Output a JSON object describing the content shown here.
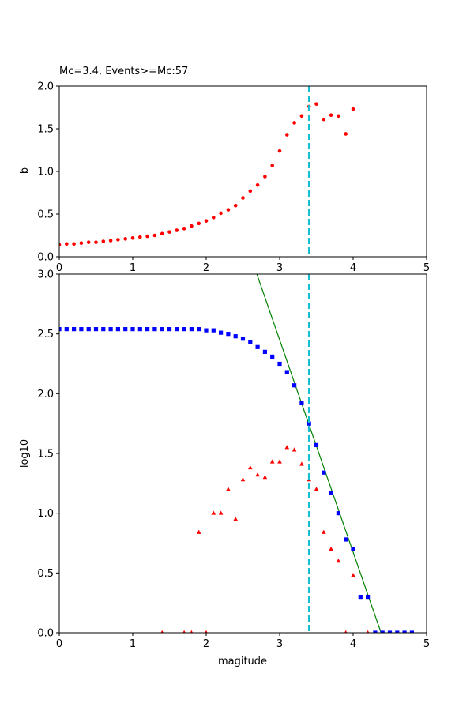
{
  "chart_data": [
    {
      "type": "scatter",
      "title": "Mc=3.4, Events>=Mc:57",
      "xlabel": "",
      "ylabel": "b",
      "xlim": [
        0,
        5
      ],
      "ylim": [
        0,
        2.0
      ],
      "xticks": [
        "0",
        "1",
        "2",
        "3",
        "4",
        "5"
      ],
      "xtick_values": [
        0,
        1,
        2,
        3,
        4,
        5
      ],
      "yticks": [
        "0.0",
        "0.5",
        "1.0",
        "1.5",
        "2.0"
      ],
      "ytick_values": [
        0,
        0.5,
        1.0,
        1.5,
        2.0
      ],
      "grid": false,
      "mc_line": {
        "x": 3.4,
        "color": "#17becf"
      },
      "series": [
        {
          "marker": "circle",
          "color": "#ff0000",
          "x": [
            0,
            0.1,
            0.2,
            0.3,
            0.4,
            0.5,
            0.6,
            0.7,
            0.8,
            0.9,
            1.0,
            1.1,
            1.2,
            1.3,
            1.4,
            1.5,
            1.6,
            1.7,
            1.8,
            1.9,
            2.0,
            2.1,
            2.2,
            2.3,
            2.4,
            2.5,
            2.6,
            2.7,
            2.8,
            2.9,
            3.0,
            3.1,
            3.2,
            3.3,
            3.4,
            3.5,
            3.6,
            3.7,
            3.8,
            3.9,
            4.0
          ],
          "y": [
            0.14,
            0.15,
            0.15,
            0.16,
            0.17,
            0.17,
            0.18,
            0.19,
            0.2,
            0.21,
            0.22,
            0.23,
            0.24,
            0.25,
            0.27,
            0.29,
            0.31,
            0.33,
            0.36,
            0.39,
            0.42,
            0.46,
            0.51,
            0.55,
            0.6,
            0.69,
            0.77,
            0.84,
            0.94,
            1.07,
            1.24,
            1.43,
            1.57,
            1.65,
            1.76,
            1.79,
            1.61,
            1.66,
            1.65,
            1.44,
            1.73
          ]
        }
      ]
    },
    {
      "type": "scatter",
      "title": "",
      "xlabel": "magitude",
      "ylabel": "log10",
      "xlim": [
        0,
        5
      ],
      "ylim": [
        0,
        3.0
      ],
      "xticks": [
        "0",
        "1",
        "2",
        "3",
        "4",
        "5"
      ],
      "xtick_values": [
        0,
        1,
        2,
        3,
        4,
        5
      ],
      "yticks": [
        "0.0",
        "0.5",
        "1.0",
        "1.5",
        "2.0",
        "2.5",
        "3.0"
      ],
      "ytick_values": [
        0,
        0.5,
        1.0,
        1.5,
        2.0,
        2.5,
        3.0
      ],
      "grid": false,
      "mc_line": {
        "x": 3.4,
        "color": "#17becf"
      },
      "fit_line": {
        "x": [
          2.69,
          4.38
        ],
        "y": [
          3.0,
          0.0
        ],
        "color": "#008000"
      },
      "series": [
        {
          "marker": "square",
          "color": "#0000ff",
          "x": [
            0,
            0.1,
            0.2,
            0.3,
            0.4,
            0.5,
            0.6,
            0.7,
            0.8,
            0.9,
            1.0,
            1.1,
            1.2,
            1.3,
            1.4,
            1.5,
            1.6,
            1.7,
            1.8,
            1.9,
            2.0,
            2.1,
            2.2,
            2.3,
            2.4,
            2.5,
            2.6,
            2.7,
            2.8,
            2.9,
            3.0,
            3.1,
            3.2,
            3.3,
            3.4,
            3.5,
            3.6,
            3.7,
            3.8,
            3.9,
            4.0,
            4.1,
            4.2,
            4.3,
            4.4,
            4.5,
            4.6,
            4.7,
            4.8
          ],
          "y": [
            2.54,
            2.54,
            2.54,
            2.54,
            2.54,
            2.54,
            2.54,
            2.54,
            2.54,
            2.54,
            2.54,
            2.54,
            2.54,
            2.54,
            2.54,
            2.54,
            2.54,
            2.54,
            2.54,
            2.54,
            2.53,
            2.53,
            2.51,
            2.5,
            2.48,
            2.46,
            2.43,
            2.39,
            2.35,
            2.31,
            2.25,
            2.18,
            2.07,
            1.92,
            1.75,
            1.57,
            1.34,
            1.17,
            1.0,
            0.78,
            0.7,
            0.3,
            0.3,
            0.0,
            0.0,
            0.0,
            0.0,
            0.0,
            0.0
          ]
        },
        {
          "marker": "triangle",
          "color": "#ff0000",
          "x": [
            1.4,
            1.7,
            1.8,
            1.9,
            2.0,
            2.1,
            2.2,
            2.3,
            2.4,
            2.5,
            2.6,
            2.7,
            2.8,
            2.9,
            3.0,
            3.1,
            3.2,
            3.3,
            3.4,
            3.5,
            3.6,
            3.7,
            3.8,
            3.9,
            4.0,
            4.2
          ],
          "y": [
            0.0,
            0.0,
            0.0,
            0.84,
            0.0,
            1.0,
            1.0,
            1.2,
            0.95,
            1.28,
            1.38,
            1.32,
            1.3,
            1.43,
            1.43,
            1.55,
            1.53,
            1.41,
            1.28,
            1.2,
            0.84,
            0.7,
            0.6,
            0.0,
            0.48,
            0.0
          ]
        }
      ]
    }
  ]
}
